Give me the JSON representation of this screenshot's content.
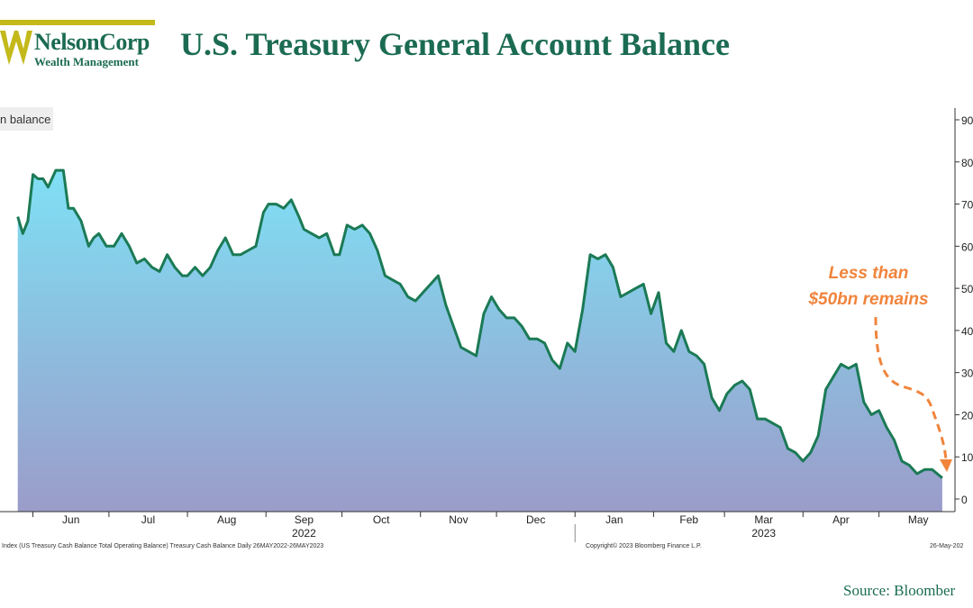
{
  "header": {
    "logo_name": "NelsonCorp",
    "logo_sub": "Wealth Management",
    "title": "U.S. Treasury General Account Balance"
  },
  "source": "Source: Bloomber",
  "colors": {
    "brand_green": "#1b6b52",
    "logo_gold": "#c4b91a",
    "line": "#1b7a55",
    "fill_top": "#7fe0f5",
    "fill_bottom": "#9b9cc9",
    "annotation": "#f0843c"
  },
  "chart_data": {
    "type": "area",
    "legend": "n balance",
    "ylim": [
      0,
      90
    ],
    "y_axis_side": "right",
    "yticks": [
      "0",
      "10",
      "20",
      "30",
      "40",
      "50",
      "60",
      "70",
      "80",
      "90"
    ],
    "grid": false,
    "months": [
      "Jun",
      "Jul",
      "Aug",
      "Sep",
      "Oct",
      "Nov",
      "Dec",
      "Jan",
      "Feb",
      "Mar",
      "Apr",
      "May"
    ],
    "years": [
      {
        "label": "2022",
        "month": "Sep"
      },
      {
        "label": "2023",
        "month": "Mar"
      }
    ],
    "annotation": {
      "line1": "Less than",
      "line2": "$50bn remains"
    },
    "footer": {
      "left": "Index (US Treasury Cash Balance Total Operating Balance) Treasury Cash Balance  Daily 26MAY2022-26MAY2023",
      "center": "Copyright© 2023 Bloomberg Finance L.P.",
      "right": "26-May-202"
    },
    "series": [
      {
        "dates": [
          "2022-05-26",
          "2022-05-28",
          "2022-05-30",
          "2022-06-01",
          "2022-06-03",
          "2022-06-05",
          "2022-06-07",
          "2022-06-10",
          "2022-06-13",
          "2022-06-15",
          "2022-06-17",
          "2022-06-20",
          "2022-06-23",
          "2022-06-25",
          "2022-06-27",
          "2022-06-30",
          "2022-07-03",
          "2022-07-06",
          "2022-07-09",
          "2022-07-12",
          "2022-07-15",
          "2022-07-18",
          "2022-07-21",
          "2022-07-24",
          "2022-07-27",
          "2022-07-30",
          "2022-08-01",
          "2022-08-04",
          "2022-08-07",
          "2022-08-10",
          "2022-08-13",
          "2022-08-16",
          "2022-08-19",
          "2022-08-22",
          "2022-08-25",
          "2022-08-28",
          "2022-08-31",
          "2022-09-02",
          "2022-09-05",
          "2022-09-08",
          "2022-09-11",
          "2022-09-14",
          "2022-09-16",
          "2022-09-19",
          "2022-09-22",
          "2022-09-25",
          "2022-09-28",
          "2022-09-30",
          "2022-10-03",
          "2022-10-06",
          "2022-10-09",
          "2022-10-12",
          "2022-10-15",
          "2022-10-18",
          "2022-10-21",
          "2022-10-24",
          "2022-10-27",
          "2022-10-30",
          "2022-11-02",
          "2022-11-05",
          "2022-11-08",
          "2022-11-11",
          "2022-11-14",
          "2022-11-17",
          "2022-11-20",
          "2022-11-23",
          "2022-11-26",
          "2022-11-29",
          "2022-12-02",
          "2022-12-05",
          "2022-12-08",
          "2022-12-11",
          "2022-12-14",
          "2022-12-17",
          "2022-12-20",
          "2022-12-23",
          "2022-12-26",
          "2022-12-29",
          "2023-01-01",
          "2023-01-04",
          "2023-01-07",
          "2023-01-10",
          "2023-01-13",
          "2023-01-16",
          "2023-01-19",
          "2023-01-22",
          "2023-01-25",
          "2023-01-28",
          "2023-01-31",
          "2023-02-03",
          "2023-02-06",
          "2023-02-09",
          "2023-02-12",
          "2023-02-15",
          "2023-02-18",
          "2023-02-21",
          "2023-02-24",
          "2023-02-27",
          "2023-03-02",
          "2023-03-05",
          "2023-03-08",
          "2023-03-11",
          "2023-03-14",
          "2023-03-17",
          "2023-03-20",
          "2023-03-23",
          "2023-03-26",
          "2023-03-29",
          "2023-04-01",
          "2023-04-04",
          "2023-04-07",
          "2023-04-10",
          "2023-04-13",
          "2023-04-16",
          "2023-04-19",
          "2023-04-22",
          "2023-04-25",
          "2023-04-28",
          "2023-05-01",
          "2023-05-04",
          "2023-05-07",
          "2023-05-10",
          "2023-05-13",
          "2023-05-16",
          "2023-05-19",
          "2023-05-22",
          "2023-05-26"
        ],
        "values": [
          67,
          63,
          66,
          77,
          76,
          76,
          74,
          78,
          78,
          69,
          69,
          66,
          60,
          62,
          63,
          60,
          60,
          63,
          60,
          56,
          57,
          55,
          54,
          58,
          55,
          53,
          53,
          55,
          53,
          55,
          59,
          62,
          58,
          58,
          59,
          60,
          68,
          70,
          70,
          69,
          71,
          67,
          64,
          63,
          62,
          63,
          58,
          58,
          65,
          64,
          65,
          63,
          59,
          53,
          52,
          51,
          48,
          47,
          49,
          51,
          53,
          46,
          41,
          36,
          35,
          34,
          44,
          48,
          45,
          43,
          43,
          41,
          38,
          38,
          37,
          33,
          31,
          37,
          35,
          45,
          58,
          57,
          58,
          55,
          48,
          49,
          50,
          51,
          44,
          49,
          37,
          35,
          40,
          35,
          34,
          32,
          24,
          21,
          25,
          27,
          28,
          26,
          19,
          19,
          18,
          17,
          12,
          11,
          9,
          11,
          15,
          26,
          29,
          32,
          31,
          32,
          23,
          20,
          21,
          17,
          14,
          9,
          8,
          6,
          7,
          7,
          5
        ]
      }
    ]
  }
}
